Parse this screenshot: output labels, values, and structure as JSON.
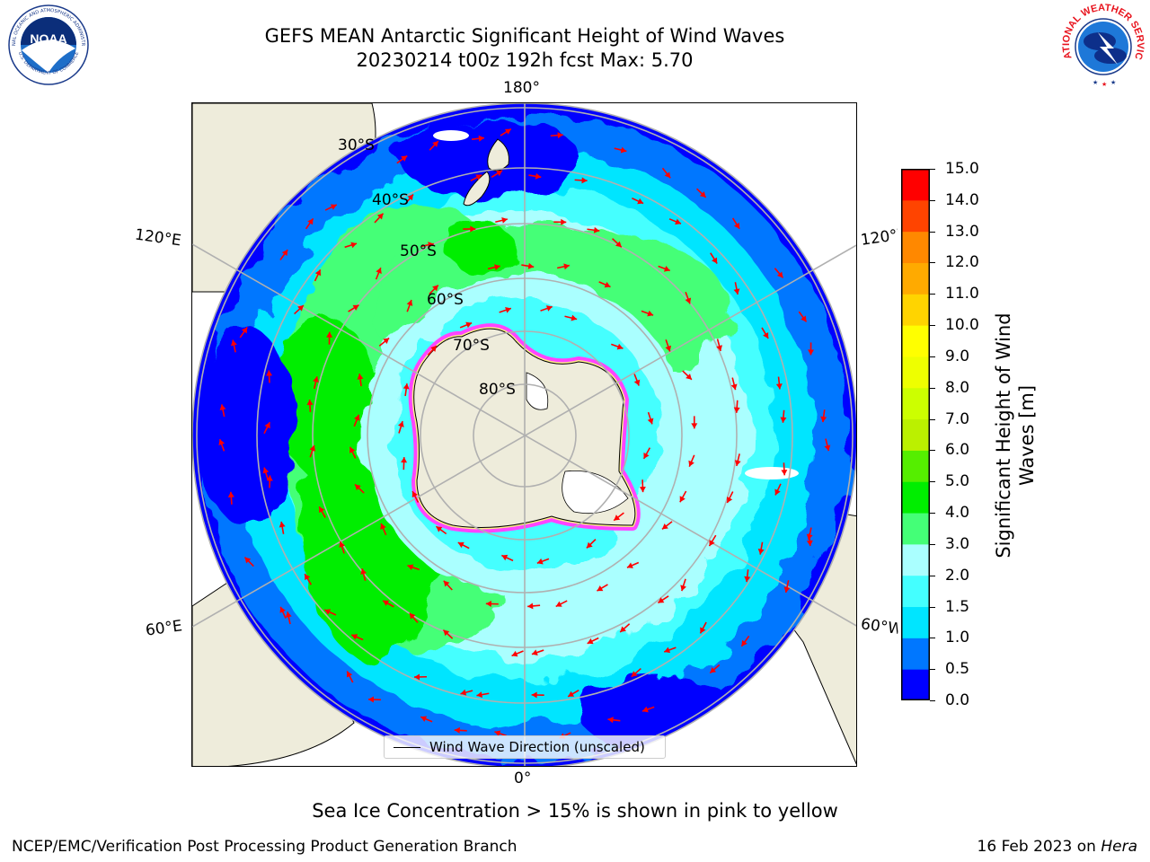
{
  "header": {
    "title_line1": "GEFS MEAN Antarctic Significant Height of Wind Waves",
    "title_line2": "20230214 t00z 192h fcst   Max: 5.70"
  },
  "logos": {
    "noaa": {
      "text": "NOAA",
      "ring_text": "NATIONAL OCEANIC AND ATMOSPHERIC ADMINISTRATION",
      "bottom_text": "U.S. DEPARTMENT OF COMMERCE"
    },
    "nws": {
      "ring_text": "NATIONAL WEATHER SERVICE"
    }
  },
  "map": {
    "projection": "south-polar-stereographic",
    "longitude_labels": {
      "top": "180°",
      "bottom": "0°",
      "upper_left": "120°E",
      "upper_right": "120°W",
      "lower_left": "60°E",
      "lower_right": "60°W"
    },
    "latitude_labels": [
      "30°S",
      "40°S",
      "50°S",
      "60°S",
      "70°S",
      "80°S"
    ],
    "legend_label": "Wind Wave Direction (unscaled)",
    "arrow_color": "#ff0000",
    "land_color": "#eeecdb",
    "sea_ice_colors": [
      "#ff44ff",
      "#ffff66"
    ],
    "grid_color": "#b0b0b0"
  },
  "colorbar": {
    "title_line1": "Significant Height of Wind",
    "title_line2": "Waves [m]",
    "ticks": [
      "0.0",
      "0.5",
      "1.0",
      "1.5",
      "2.0",
      "3.0",
      "4.0",
      "5.0",
      "6.0",
      "7.0",
      "8.0",
      "9.0",
      "10.0",
      "11.0",
      "12.0",
      "13.0",
      "14.0",
      "15.0"
    ],
    "colors": [
      "#0000ff",
      "#0077ff",
      "#00e5ff",
      "#44ffff",
      "#aaffff",
      "#44ff77",
      "#00ee00",
      "#55ee00",
      "#bbf000",
      "#ccff00",
      "#eeff00",
      "#ffff00",
      "#ffd400",
      "#ffaa00",
      "#ff8800",
      "#ff4400",
      "#ff0000"
    ]
  },
  "footer": {
    "note": "Sea Ice Concentration > 15% is shown in pink to yellow",
    "credit": "NCEP/EMC/Verification Post Processing Product Generation Branch",
    "date": "16 Feb 2023 on ",
    "machine": "Hera"
  }
}
